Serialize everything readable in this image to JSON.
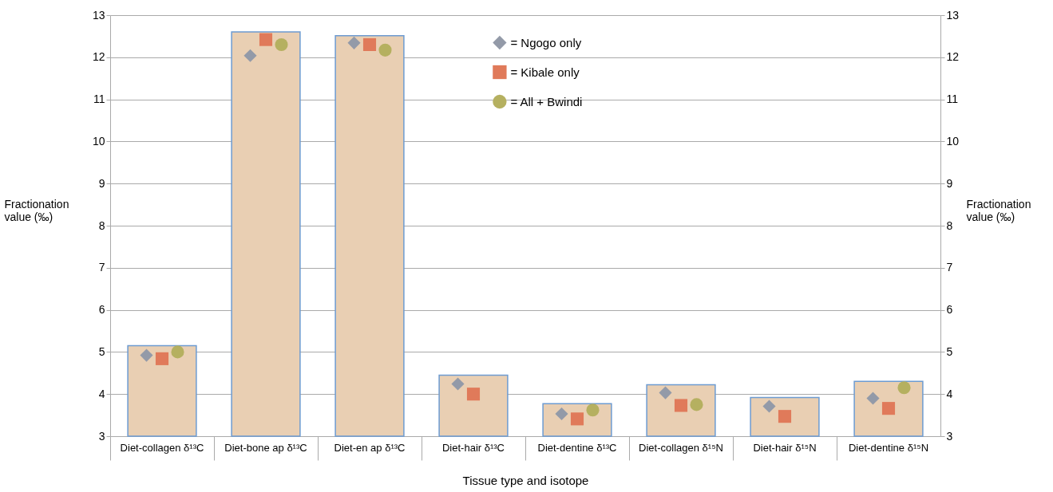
{
  "chart_data": {
    "type": "bar",
    "xlabel": "Tissue type and isotope",
    "ylabel": "Fractionation value  (‰)",
    "y2label": "Fractionation value  (‰)",
    "categories": [
      "Diet-collagen δ¹³C",
      "Diet-bone ap δ¹³C",
      "Diet-en ap δ¹³C",
      "Diet-hair δ¹³C",
      "Diet-dentine δ¹³C",
      "Diet-collagen δ¹⁵N",
      "Diet-hair δ¹⁵N",
      "Diet-dentine δ¹⁵N"
    ],
    "series": [
      {
        "color": "#e9cfb3",
        "values": [
          5.15,
          12.6,
          12.51,
          4.45,
          3.77,
          4.22,
          3.92,
          4.3
        ]
      },
      {
        "type": "scatter",
        "name": "= Ngogo only",
        "color": "#939aa8",
        "marker": "diamond",
        "values": [
          4.92,
          12.04,
          12.34,
          4.24,
          3.53,
          4.03,
          3.71,
          3.9
        ]
      },
      {
        "type": "scatter",
        "name": "= Kibale only",
        "color": "#e07a5a",
        "marker": "square",
        "values": [
          4.84,
          12.42,
          12.3,
          4.0,
          3.41,
          3.73,
          3.47,
          3.66
        ]
      },
      {
        "type": "scatter",
        "name": "= All + Bwindi",
        "color": "#b5b060",
        "marker": "circle",
        "values": [
          5.0,
          12.3,
          12.17,
          null,
          3.62,
          3.75,
          null,
          4.15
        ]
      }
    ],
    "ylim": [
      3,
      13
    ],
    "yticks": [
      3,
      4,
      5,
      6,
      7,
      8,
      9,
      10,
      11,
      12,
      13
    ],
    "y2lim": [
      3,
      13
    ],
    "y2ticks": [
      3,
      4,
      5,
      6,
      7,
      8,
      9,
      10,
      11,
      12,
      13
    ],
    "grid": "y",
    "legend": "top"
  }
}
